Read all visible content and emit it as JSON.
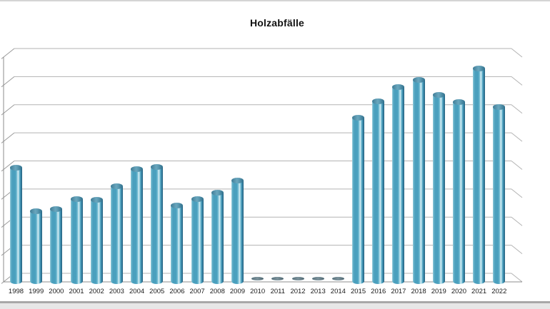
{
  "chart_data": {
    "type": "bar",
    "style": "3d-cylinder-columns",
    "title": "Holzabfälle",
    "xlabel": "",
    "ylabel": "",
    "legend_position": "none",
    "y_axis_tick_labels_visible": false,
    "value_scale": "percent_of_visible_axis_max",
    "ylim": [
      0,
      100
    ],
    "gridline_count": 9,
    "grid_on": true,
    "bar_color": "#4ba2c0",
    "categories": [
      "1998",
      "1999",
      "2000",
      "2001",
      "2002",
      "2003",
      "2004",
      "2005",
      "2006",
      "2007",
      "2008",
      "2009",
      "2010",
      "2011",
      "2012",
      "2013",
      "2014",
      "2015",
      "2016",
      "2017",
      "2018",
      "2019",
      "2020",
      "2021",
      "2022"
    ],
    "values": [
      50.8,
      31.4,
      32.4,
      36.8,
      36.5,
      42.5,
      50.2,
      51.1,
      34.0,
      36.8,
      39.7,
      45.1,
      0,
      0,
      0,
      0,
      0,
      73.0,
      80.3,
      86.7,
      89.8,
      83.2,
      80.0,
      94.9,
      77.8
    ]
  }
}
